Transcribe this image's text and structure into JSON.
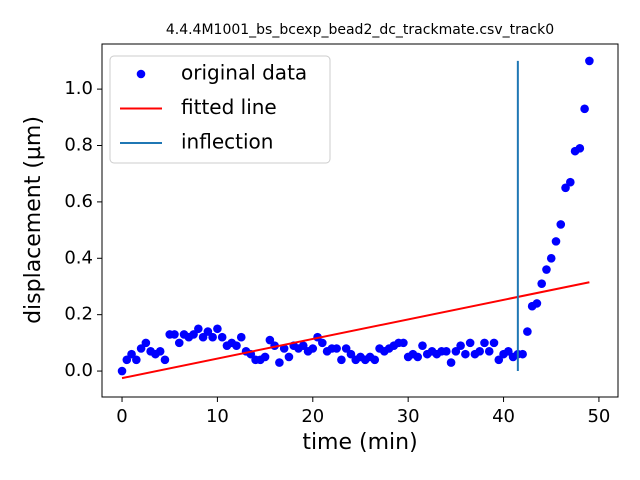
{
  "chart_data": {
    "type": "scatter",
    "title": "4.4.4M1001_bs_bcexp_bead2_dc_trackmate.csv_track0",
    "xlabel": "time (min)",
    "ylabel": "displacement (µm)",
    "xlim": [
      -2.1,
      52.0
    ],
    "ylim": [
      -0.092,
      1.16
    ],
    "xticks": [
      0,
      10,
      20,
      30,
      40,
      50
    ],
    "yticks": [
      {
        "value": 0,
        "label": "0.0"
      },
      {
        "value": 0.2,
        "label": "0.2"
      },
      {
        "value": 0.4,
        "label": "0.4"
      },
      {
        "value": 0.6,
        "label": "0.6"
      },
      {
        "value": 0.8,
        "label": "0.8"
      },
      {
        "value": 1.0,
        "label": "1.0"
      }
    ],
    "legend": "upper left",
    "series": [
      {
        "name": "original data",
        "type": "scatter",
        "color": "#0000ff",
        "x": [
          0,
          0.5,
          1,
          1.5,
          2,
          2.5,
          3,
          3.5,
          4,
          4.5,
          5,
          5.5,
          6,
          6.5,
          7,
          7.5,
          8,
          8.5,
          9,
          9.5,
          10,
          10.5,
          11,
          11.5,
          12,
          12.5,
          13,
          13.5,
          14,
          14.5,
          15,
          15.5,
          16,
          16.5,
          17,
          17.5,
          18,
          18.5,
          19,
          19.5,
          20,
          20.5,
          21,
          21.5,
          22,
          22.5,
          23,
          23.5,
          24,
          24.5,
          25,
          25.5,
          26,
          26.5,
          27,
          27.5,
          28,
          28.5,
          29,
          29.5,
          30,
          30.5,
          31,
          31.5,
          32,
          32.5,
          33,
          33.5,
          34,
          34.5,
          35,
          35.5,
          36,
          36.5,
          37,
          37.5,
          38,
          38.5,
          39,
          39.5,
          40,
          40.5,
          41,
          41.5,
          42,
          42.5,
          43,
          43.5,
          44,
          44.5,
          45,
          45.5,
          46,
          46.5,
          47,
          47.5,
          48,
          48.5,
          49
        ],
        "values": [
          0,
          0.04,
          0.06,
          0.04,
          0.08,
          0.1,
          0.07,
          0.06,
          0.07,
          0.04,
          0.13,
          0.13,
          0.1,
          0.13,
          0.12,
          0.13,
          0.15,
          0.12,
          0.14,
          0.12,
          0.15,
          0.12,
          0.09,
          0.1,
          0.09,
          0.12,
          0.07,
          0.06,
          0.04,
          0.04,
          0.05,
          0.11,
          0.09,
          0.03,
          0.08,
          0.05,
          0.09,
          0.08,
          0.09,
          0.07,
          0.08,
          0.12,
          0.1,
          0.07,
          0.08,
          0.08,
          0.04,
          0.08,
          0.06,
          0.04,
          0.05,
          0.04,
          0.05,
          0.04,
          0.08,
          0.07,
          0.08,
          0.09,
          0.1,
          0.1,
          0.05,
          0.06,
          0.05,
          0.09,
          0.06,
          0.07,
          0.06,
          0.07,
          0.07,
          0.03,
          0.07,
          0.09,
          0.06,
          0.1,
          0.06,
          0.07,
          0.1,
          0.07,
          0.1,
          0.04,
          0.06,
          0.07,
          0.05,
          0.06,
          0.06,
          0.14,
          0.23,
          0.24,
          0.31,
          0.36,
          0.4,
          0.46,
          0.52,
          0.65,
          0.67,
          0.78,
          0.79,
          0.93,
          1.1
        ]
      },
      {
        "name": "fitted line",
        "type": "line",
        "color": "#ff0000",
        "x": [
          0,
          49
        ],
        "values": [
          -0.025,
          0.315
        ]
      },
      {
        "name": "inflection",
        "type": "line",
        "color": "#1f77b4",
        "x": [
          41.5,
          41.5
        ],
        "values": [
          0,
          1.1
        ]
      }
    ]
  }
}
